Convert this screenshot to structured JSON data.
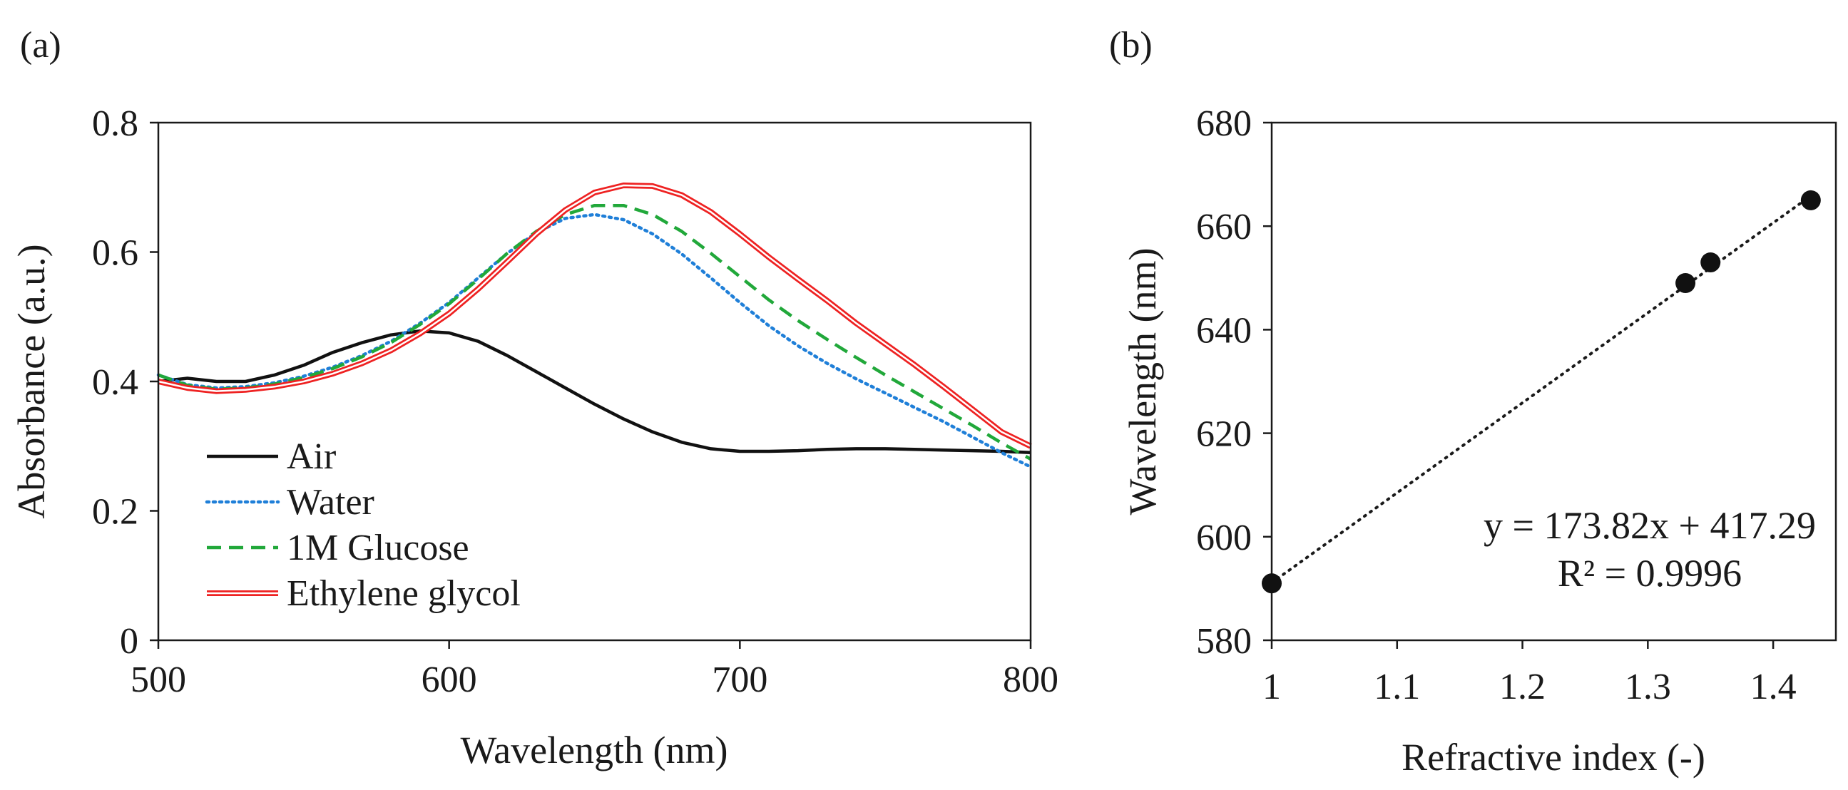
{
  "chart_data": [
    {
      "panel_label": "(a)",
      "type": "line",
      "xlabel": "Wavelength (nm)",
      "ylabel": "Absorbance (a.u.)",
      "xlim": [
        500,
        800
      ],
      "ylim": [
        0,
        0.8
      ],
      "xticks": [
        500,
        600,
        700,
        800
      ],
      "xtick_labels": [
        "500",
        "600",
        "700",
        "800"
      ],
      "yticks": [
        0,
        0.2,
        0.4,
        0.6,
        0.8
      ],
      "ytick_labels": [
        "0",
        "0.2",
        "0.4",
        "0.6",
        "0.8"
      ],
      "grid": false,
      "legend_position": "lower-left",
      "series": [
        {
          "name": "Air",
          "color": "#111111",
          "style": "solid",
          "x": [
            500,
            510,
            520,
            530,
            540,
            550,
            560,
            570,
            580,
            590,
            600,
            610,
            620,
            630,
            640,
            650,
            660,
            670,
            680,
            690,
            700,
            710,
            720,
            730,
            740,
            750,
            760,
            770,
            780,
            790,
            800
          ],
          "y": [
            0.4,
            0.405,
            0.4,
            0.4,
            0.41,
            0.425,
            0.445,
            0.46,
            0.472,
            0.478,
            0.475,
            0.462,
            0.44,
            0.415,
            0.39,
            0.365,
            0.342,
            0.322,
            0.306,
            0.296,
            0.292,
            0.292,
            0.293,
            0.295,
            0.296,
            0.296,
            0.295,
            0.294,
            0.293,
            0.292,
            0.29
          ]
        },
        {
          "name": "Water",
          "color": "#1f7fd8",
          "style": "dotted",
          "x": [
            500,
            510,
            520,
            530,
            540,
            550,
            560,
            570,
            580,
            590,
            600,
            610,
            620,
            630,
            640,
            650,
            660,
            670,
            680,
            690,
            700,
            710,
            720,
            730,
            740,
            750,
            760,
            770,
            780,
            790,
            800
          ],
          "y": [
            0.41,
            0.395,
            0.39,
            0.392,
            0.398,
            0.408,
            0.422,
            0.44,
            0.462,
            0.49,
            0.522,
            0.56,
            0.598,
            0.63,
            0.652,
            0.658,
            0.65,
            0.628,
            0.597,
            0.56,
            0.522,
            0.486,
            0.455,
            0.428,
            0.404,
            0.382,
            0.36,
            0.338,
            0.314,
            0.29,
            0.268
          ]
        },
        {
          "name": "1M Glucose",
          "color": "#21a83a",
          "style": "dashed",
          "x": [
            500,
            510,
            520,
            530,
            540,
            550,
            560,
            570,
            580,
            590,
            600,
            610,
            620,
            630,
            640,
            650,
            660,
            670,
            680,
            690,
            700,
            710,
            720,
            730,
            740,
            750,
            760,
            770,
            780,
            790,
            800
          ],
          "y": [
            0.41,
            0.394,
            0.388,
            0.39,
            0.396,
            0.406,
            0.42,
            0.438,
            0.46,
            0.488,
            0.52,
            0.558,
            0.598,
            0.632,
            0.658,
            0.672,
            0.672,
            0.658,
            0.632,
            0.598,
            0.562,
            0.526,
            0.494,
            0.465,
            0.437,
            0.41,
            0.384,
            0.358,
            0.332,
            0.305,
            0.28
          ]
        },
        {
          "name": "Ethylene glycol",
          "color": "#ee2222",
          "style": "double",
          "x": [
            500,
            510,
            520,
            530,
            540,
            550,
            560,
            570,
            580,
            590,
            600,
            610,
            620,
            630,
            640,
            650,
            660,
            670,
            680,
            690,
            700,
            710,
            720,
            730,
            740,
            750,
            760,
            770,
            780,
            790,
            800
          ],
          "y": [
            0.4,
            0.39,
            0.385,
            0.387,
            0.392,
            0.4,
            0.412,
            0.428,
            0.448,
            0.474,
            0.505,
            0.543,
            0.585,
            0.628,
            0.665,
            0.692,
            0.703,
            0.702,
            0.688,
            0.662,
            0.628,
            0.592,
            0.558,
            0.525,
            0.49,
            0.458,
            0.426,
            0.392,
            0.357,
            0.322,
            0.3
          ]
        }
      ]
    },
    {
      "panel_label": "(b)",
      "type": "scatter",
      "xlabel": "Refractive index (-)",
      "ylabel": "Wavelength (nm)",
      "xlim": [
        1,
        1.45
      ],
      "ylim": [
        580,
        680
      ],
      "xticks": [
        1,
        1.1,
        1.2,
        1.3,
        1.4
      ],
      "xtick_labels": [
        "1",
        "1.1",
        "1.2",
        "1.3",
        "1.4"
      ],
      "yticks": [
        580,
        600,
        620,
        640,
        660,
        680
      ],
      "ytick_labels": [
        "580",
        "600",
        "620",
        "640",
        "660",
        "680"
      ],
      "grid": false,
      "points": [
        {
          "x": 1.0,
          "y": 591
        },
        {
          "x": 1.33,
          "y": 649
        },
        {
          "x": 1.35,
          "y": 653
        },
        {
          "x": 1.43,
          "y": 665
        }
      ],
      "trendline": {
        "slope": 173.82,
        "intercept": 417.29,
        "x_range": [
          1.0,
          1.43
        ],
        "style": "dotted"
      },
      "equation": "y = 173.82x + 417.29",
      "r_squared": "R² = 0.9996"
    }
  ]
}
